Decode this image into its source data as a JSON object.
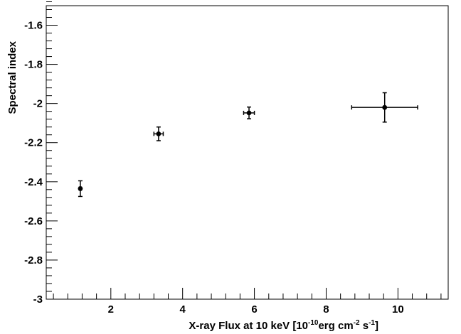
{
  "chart_data": {
    "type": "scatter",
    "title": "",
    "xlabel": {
      "pre": "X-ray Flux at 10 keV [10",
      "sup1": "-10",
      "mid1": "erg cm",
      "sup2": "-2",
      "mid2": " s",
      "sup3": "-1",
      "post": "]"
    },
    "ylabel": "Spectral index",
    "xlim": [
      0.2,
      11.4
    ],
    "ylim": [
      -3.0,
      -1.5
    ],
    "x_ticks": [
      2,
      4,
      6,
      8,
      10
    ],
    "x_tick_labels": [
      "2",
      "4",
      "6",
      "8",
      "10"
    ],
    "y_ticks": [
      -3.0,
      -2.8,
      -2.6,
      -2.4,
      -2.2,
      -2.0,
      -1.8,
      -1.6
    ],
    "y_tick_labels": [
      "-3",
      "-2.8",
      "-2.6",
      "-2.4",
      "-2.2",
      "-2",
      "-1.8",
      "-1.6"
    ],
    "grid": false,
    "series": [
      {
        "x": [
          1.15,
          3.33,
          5.85,
          9.63
        ],
        "y": [
          -2.435,
          -2.155,
          -2.048,
          -2.02
        ],
        "x_err": [
          0.03,
          0.13,
          0.15,
          0.92
        ],
        "y_err": [
          0.04,
          0.035,
          0.03,
          0.075
        ]
      }
    ],
    "colors": {
      "marker": "#000000",
      "axis": "#000000"
    }
  }
}
